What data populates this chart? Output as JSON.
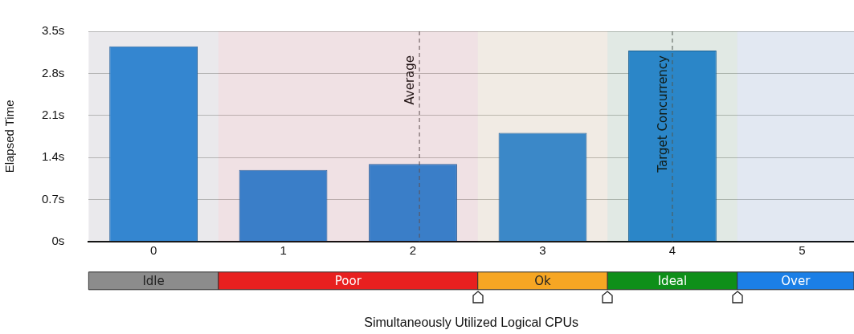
{
  "chart_data": {
    "type": "bar",
    "ylabel": "Elapsed Time",
    "xlabel": "Simultaneously Utilized Logical CPUs",
    "x": [
      0,
      1,
      2,
      3,
      4,
      5
    ],
    "values": [
      3.25,
      1.19,
      1.29,
      1.81,
      3.18,
      0
    ],
    "color": "#2e86d6",
    "xlim": [
      -0.5,
      5.4
    ],
    "xticks": [
      0,
      1,
      2,
      3,
      4,
      5
    ],
    "ylim": [
      0,
      3.5
    ],
    "yticks": [
      {
        "value": 0,
        "label": "0s"
      },
      {
        "value": 0.7,
        "label": "0.7s"
      },
      {
        "value": 1.4,
        "label": "1.4s"
      },
      {
        "value": 2.1,
        "label": "2.1s"
      },
      {
        "value": 2.8,
        "label": "2.8s"
      },
      {
        "value": 3.5,
        "label": "3.5s"
      }
    ],
    "grid": "y",
    "legend": false,
    "ref_lines": [
      {
        "axis": "x",
        "value": 2.05,
        "label": "Average",
        "color": "#555555",
        "line_style": "dashed"
      },
      {
        "axis": "x",
        "value": 4,
        "label": "Target Concurrency",
        "color": "#555555",
        "line_style": "dashed"
      }
    ],
    "bands": [
      {
        "axis": "x",
        "from": -0.5,
        "to": 0.5,
        "label": "Idle",
        "color": "#8c8c8c"
      },
      {
        "axis": "x",
        "from": 0.5,
        "to": 2.5,
        "label": "Poor",
        "color": "#e8201f"
      },
      {
        "axis": "x",
        "from": 2.5,
        "to": 3.5,
        "label": "Ok",
        "color": "#f6a623"
      },
      {
        "axis": "x",
        "from": 3.5,
        "to": 4.5,
        "label": "Ideal",
        "color": "#0e8f19"
      },
      {
        "axis": "x",
        "from": 4.5,
        "to": 5.4,
        "label": "Over",
        "color": "#1b7fe6"
      }
    ]
  }
}
